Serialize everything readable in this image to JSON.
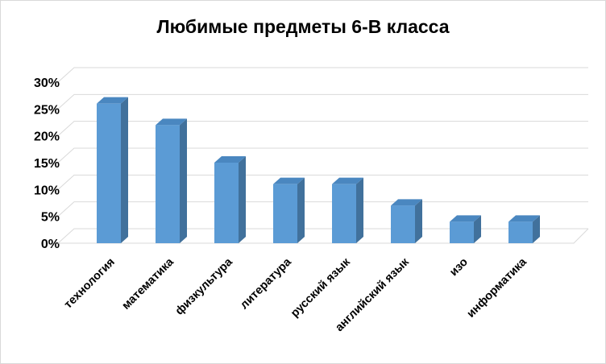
{
  "chart_data": {
    "type": "bar",
    "title": "Любимые предметы 6-В класса",
    "categories": [
      "технология",
      "математика",
      "физкультура",
      "литература",
      "русский язык",
      "английский язык",
      "изо",
      "информатика"
    ],
    "values": [
      26,
      22,
      15,
      11,
      11,
      7,
      4,
      4
    ],
    "y_ticks": [
      "0%",
      "5%",
      "10%",
      "15%",
      "20%",
      "25%",
      "30%"
    ],
    "ylim": [
      0,
      30
    ],
    "grid": true,
    "three_d": true,
    "colors": {
      "bar_front": "#5b9bd5",
      "bar_side": "#41719c",
      "bar_top": "#4a87c0",
      "grid": "#d9d9d9"
    }
  }
}
